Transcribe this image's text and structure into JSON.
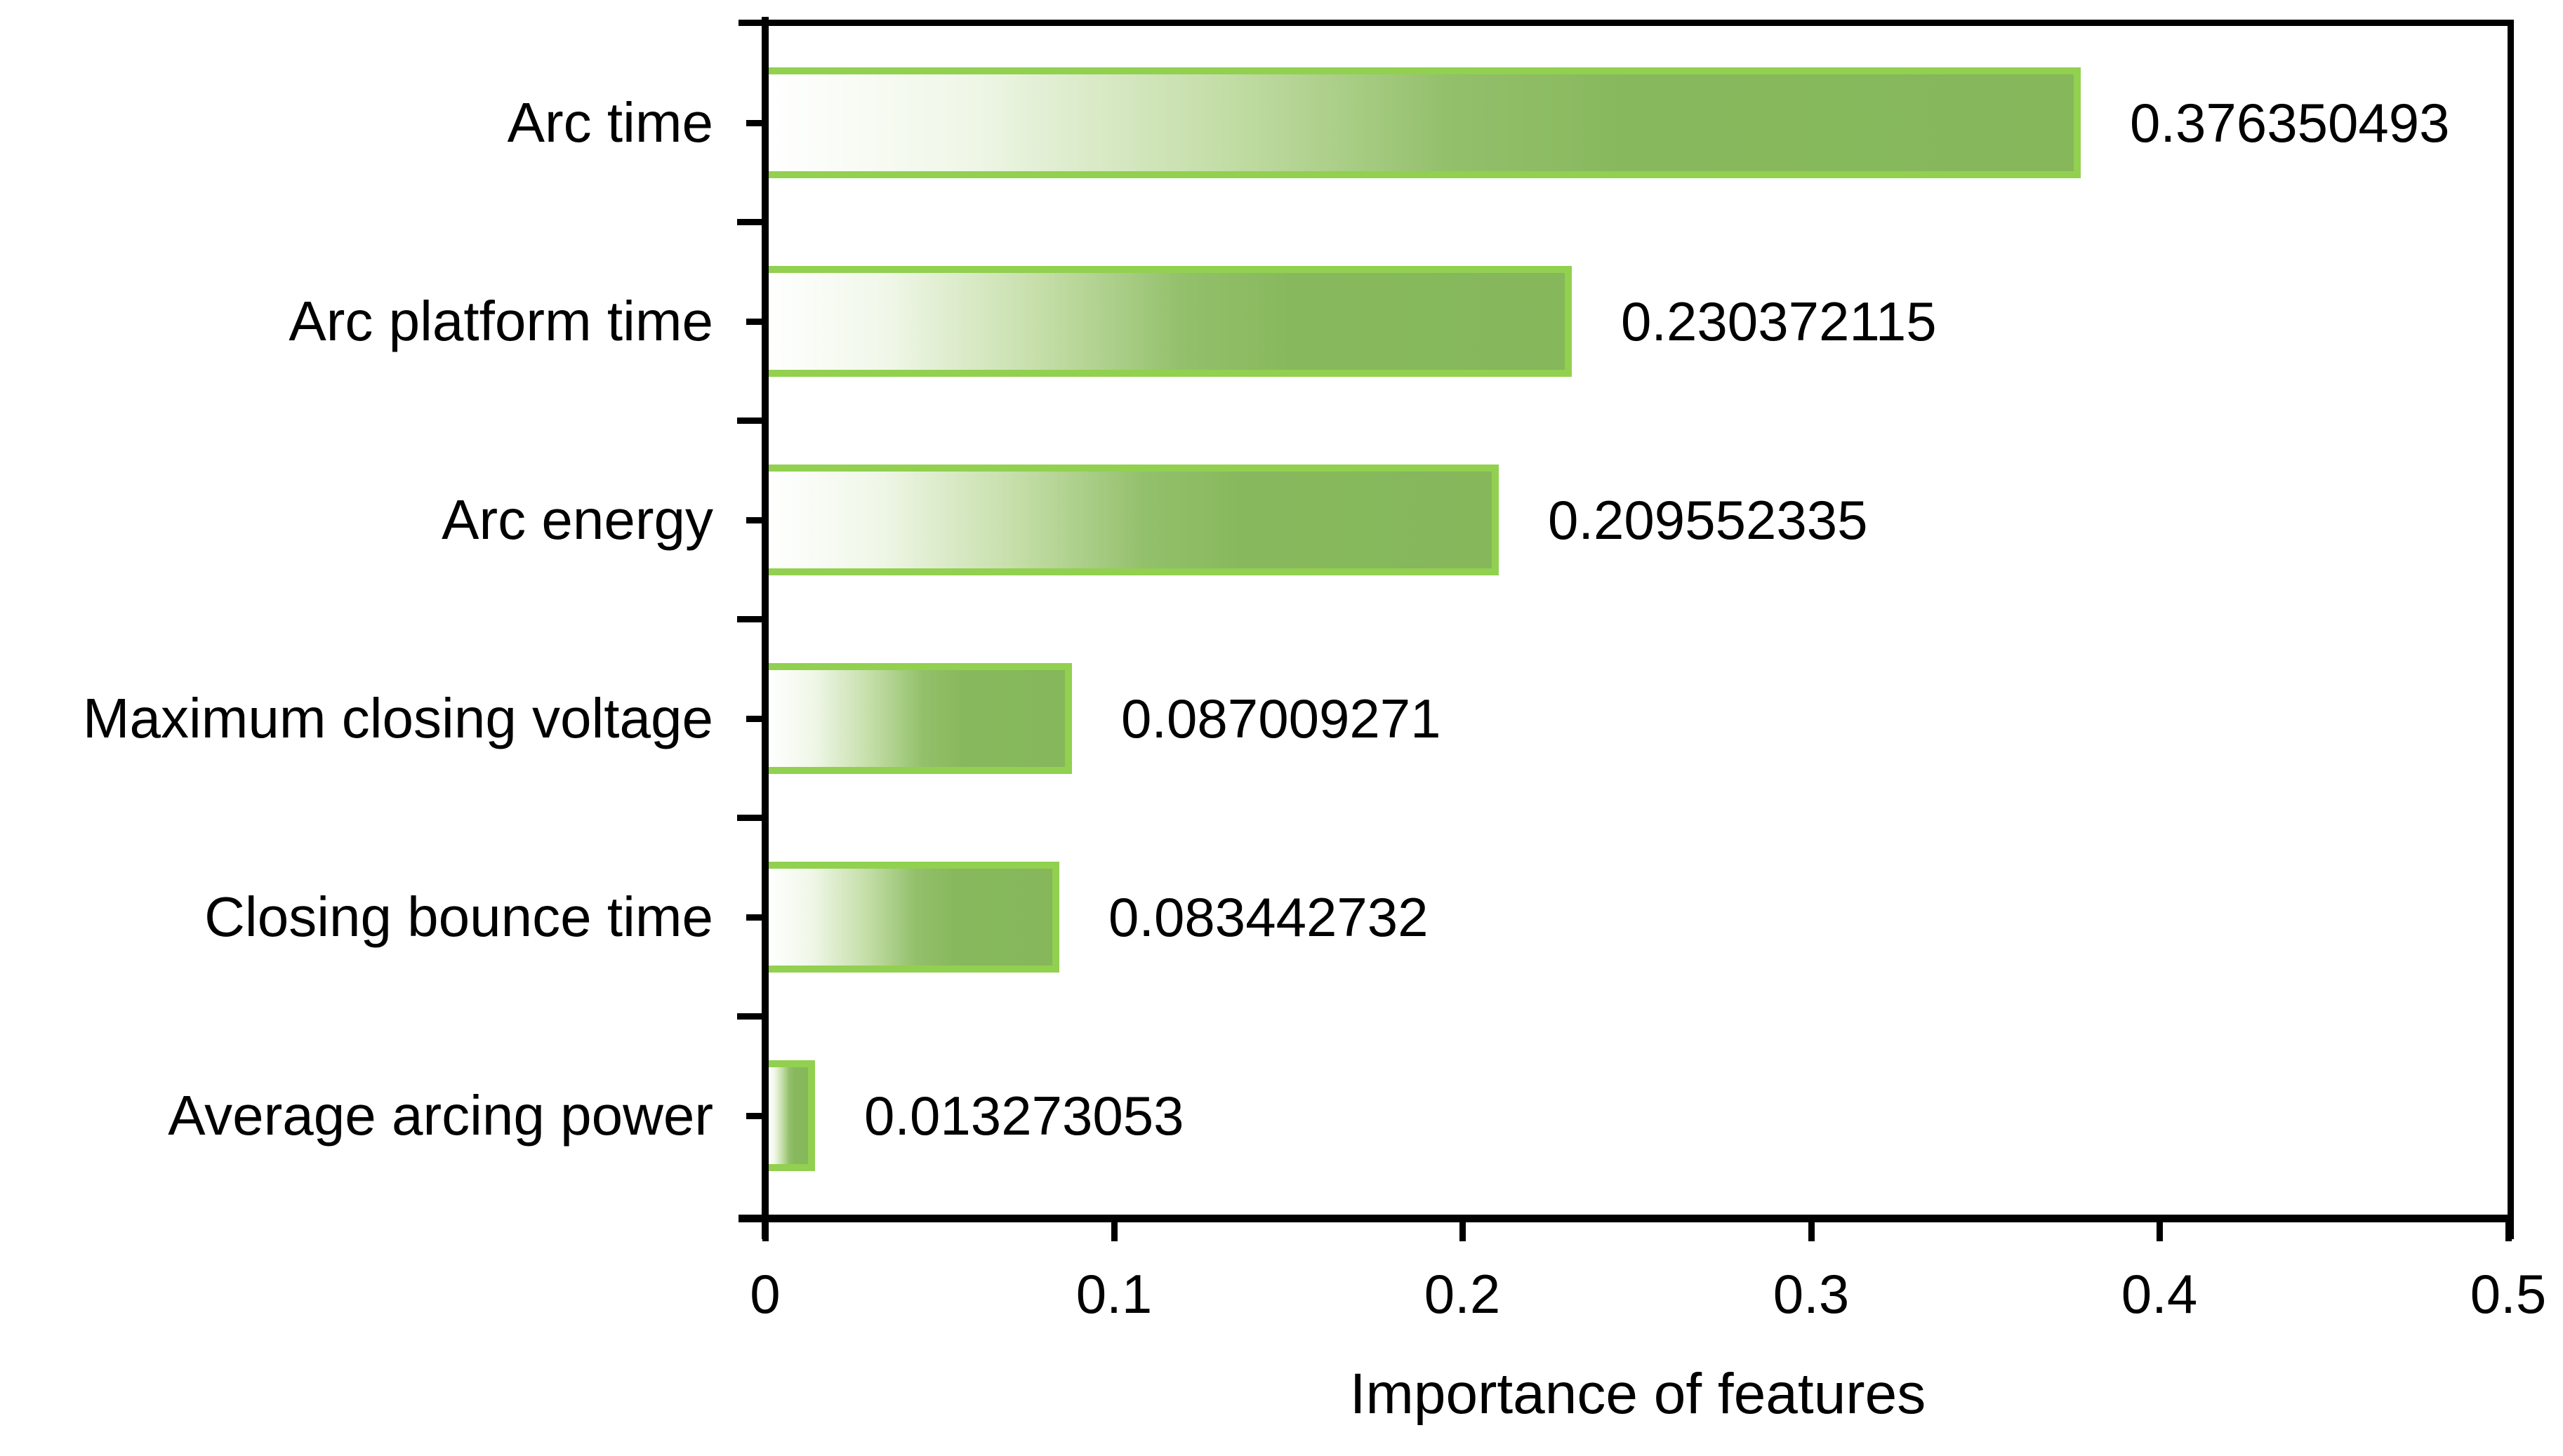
{
  "chart_data": {
    "type": "bar",
    "orientation": "horizontal",
    "xlabel": "Importance of features",
    "xlim": [
      0,
      0.5
    ],
    "x_ticks": [
      "0",
      "0.1",
      "0.2",
      "0.3",
      "0.4",
      "0.5"
    ],
    "grid": false,
    "legend": false,
    "categories": [
      "Arc time",
      "Arc platform time",
      "Arc energy",
      "Maximum closing voltage",
      "Closing bounce time",
      "Average arcing power"
    ],
    "values": [
      0.376350493,
      0.230372115,
      0.209552335,
      0.087009271,
      0.083442732,
      0.013273053
    ],
    "value_labels": [
      "0.376350493",
      "0.230372115",
      "0.209552335",
      "0.087009271",
      "0.083442732",
      "0.013273053"
    ],
    "colors": {
      "bar_border": "#92d050",
      "bar_fill_start": "#ffffff",
      "bar_fill_end": "#86b75b",
      "axis": "#000000",
      "text": "#000000"
    }
  }
}
